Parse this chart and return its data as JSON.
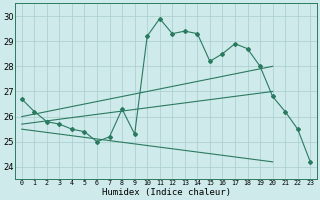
{
  "title": "",
  "xlabel": "Humidex (Indice chaleur)",
  "x_values": [
    0,
    1,
    2,
    3,
    4,
    5,
    6,
    7,
    8,
    9,
    10,
    11,
    12,
    13,
    14,
    15,
    16,
    17,
    18,
    19,
    20,
    21,
    22,
    23
  ],
  "line1": [
    26.7,
    26.2,
    25.8,
    25.7,
    25.5,
    25.4,
    25.0,
    25.2,
    26.3,
    25.3,
    29.2,
    29.9,
    29.3,
    29.4,
    29.3,
    28.2,
    28.5,
    28.9,
    28.7,
    28.0,
    26.8,
    26.2,
    25.5,
    24.2
  ],
  "upper_line": [
    [
      0,
      26.0
    ],
    [
      20,
      28.0
    ]
  ],
  "mid_line": [
    [
      0,
      25.7
    ],
    [
      20,
      27.0
    ]
  ],
  "lower_line": [
    [
      0,
      25.5
    ],
    [
      20,
      24.2
    ]
  ],
  "ylim": [
    23.5,
    30.5
  ],
  "yticks": [
    24,
    25,
    26,
    27,
    28,
    29,
    30
  ],
  "line_color": "#2a7a60",
  "bg_color": "#ceeaea",
  "grid_color": "#a8cccc",
  "marker": "D",
  "markersize": 2.0,
  "linewidth": 0.8
}
